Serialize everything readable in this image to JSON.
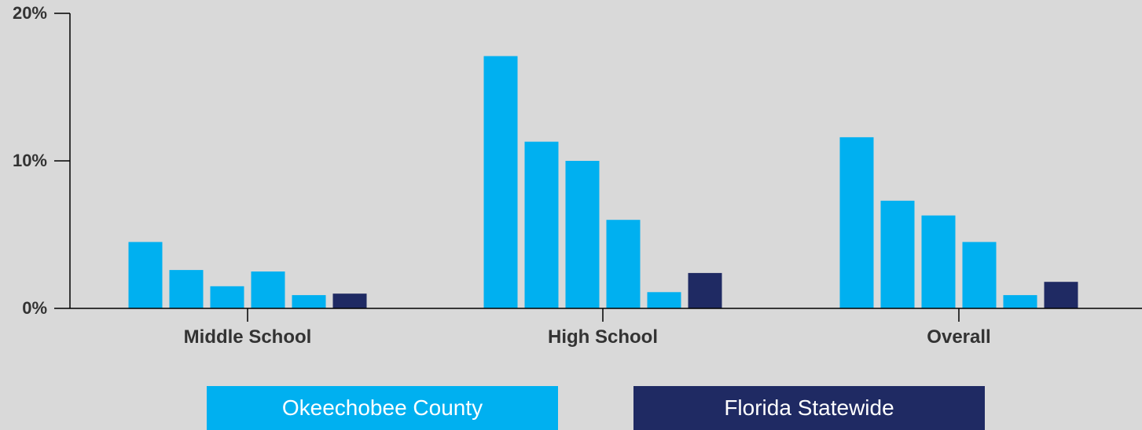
{
  "chart_data": {
    "type": "bar",
    "title": "",
    "xlabel": "",
    "ylabel": "",
    "ylim": [
      0,
      20
    ],
    "yticks": [
      "0%",
      "10%",
      "20%"
    ],
    "categories": [
      "Middle School",
      "High School",
      "Overall"
    ],
    "series": [
      {
        "color": "#00b0f0",
        "values": [
          4.5,
          17.1,
          11.6
        ]
      },
      {
        "color": "#00b0f0",
        "values": [
          2.6,
          11.3,
          7.3
        ]
      },
      {
        "color": "#00b0f0",
        "values": [
          1.5,
          10.0,
          6.3
        ]
      },
      {
        "color": "#00b0f0",
        "values": [
          2.5,
          6.0,
          4.5
        ]
      },
      {
        "color": "#00b0f0",
        "values": [
          0.9,
          1.1,
          0.9
        ]
      },
      {
        "color": "#1f2a63",
        "values": [
          1.0,
          2.4,
          1.8
        ]
      }
    ],
    "grid": false,
    "legend": {
      "placement": "bottom",
      "items": [
        {
          "label": "Okeechobee County",
          "color": "#00b0f0"
        },
        {
          "label": "Florida Statewide",
          "color": "#1f2a63"
        }
      ]
    }
  }
}
